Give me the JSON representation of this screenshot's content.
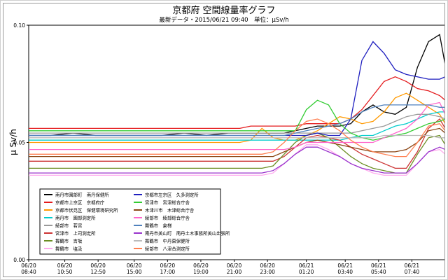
{
  "chart_data": {
    "type": "line",
    "title": "京都府 空間線量率グラフ",
    "subtitle": "最新データ・2015/06/21 09:40　単位：μSv/h",
    "ylabel": "μ Sv/h",
    "xlabel": "",
    "ylim": [
      0.0,
      0.1
    ],
    "y_ticks": [
      "0.00",
      "0.05",
      "0.10"
    ],
    "x_ticks": [
      {
        "date": "06/20",
        "time": "08:40"
      },
      {
        "date": "06/20",
        "time": "10:50"
      },
      {
        "date": "06/20",
        "time": "12:50"
      },
      {
        "date": "06/20",
        "time": "15:00"
      },
      {
        "date": "06/20",
        "time": "17:00"
      },
      {
        "date": "06/20",
        "time": "19:00"
      },
      {
        "date": "06/20",
        "time": "21:00"
      },
      {
        "date": "06/20",
        "time": "23:00"
      },
      {
        "date": "06/21",
        "time": "01:20"
      },
      {
        "date": "06/21",
        "time": "03:40"
      },
      {
        "date": "06/21",
        "time": "05:40"
      },
      {
        "date": "06/21",
        "time": "07:40"
      }
    ],
    "grid": false,
    "legend_position": "bottom-left",
    "x": [
      "06/20 08:40",
      "06/20 10:00",
      "06/20 11:20",
      "06/20 12:40",
      "06/20 14:00",
      "06/20 15:20",
      "06/20 16:40",
      "06/20 18:00",
      "06/20 19:20",
      "06/20 20:40",
      "06/20 21:20",
      "06/20 22:00",
      "06/20 22:40",
      "06/20 23:20",
      "06/21 00:00",
      "06/21 00:40",
      "06/21 01:20",
      "06/21 02:00",
      "06/21 02:40",
      "06/21 03:20",
      "06/21 04:00",
      "06/21 04:40",
      "06/21 05:20",
      "06/21 06:00",
      "06/21 06:40",
      "06/21 07:20",
      "06/21 08:00",
      "06/21 08:40",
      "06/21 09:20",
      "06/21 09:40"
    ],
    "series": [
      {
        "name": "南丹市園部町　南丹保健所",
        "color": "#000000",
        "values": [
          0.053,
          0.053,
          0.054,
          0.053,
          0.053,
          0.053,
          0.053,
          0.054,
          0.053,
          0.054,
          0.054,
          0.054,
          0.054,
          0.054,
          0.054,
          0.055,
          0.056,
          0.057,
          0.057,
          0.057,
          0.058,
          0.063,
          0.066,
          0.063,
          0.062,
          0.065,
          0.082,
          0.093,
          0.096,
          0.083
        ]
      },
      {
        "name": "京都市上京区　京都府庁",
        "color": "#e41a1c",
        "values": [
          0.056,
          0.056,
          0.056,
          0.056,
          0.056,
          0.056,
          0.056,
          0.056,
          0.056,
          0.056,
          0.056,
          0.057,
          0.057,
          0.057,
          0.057,
          0.057,
          0.058,
          0.058,
          0.058,
          0.058,
          0.06,
          0.064,
          0.07,
          0.076,
          0.078,
          0.076,
          0.073,
          0.072,
          0.07,
          0.068
        ]
      },
      {
        "name": "京都市伏見区　保健環境研究所",
        "color": "#ff9900",
        "values": [
          0.05,
          0.05,
          0.05,
          0.05,
          0.05,
          0.05,
          0.05,
          0.05,
          0.05,
          0.05,
          0.05,
          0.051,
          0.056,
          0.052,
          0.051,
          0.051,
          0.053,
          0.055,
          0.058,
          0.061,
          0.06,
          0.058,
          0.059,
          0.063,
          0.069,
          0.071,
          0.068,
          0.065,
          0.062,
          0.058
        ]
      },
      {
        "name": "南丹市　園部測定所",
        "color": "#00cccc",
        "values": [
          0.051,
          0.051,
          0.051,
          0.051,
          0.051,
          0.051,
          0.051,
          0.051,
          0.051,
          0.051,
          0.051,
          0.051,
          0.051,
          0.051,
          0.051,
          0.051,
          0.051,
          0.051,
          0.051,
          0.051,
          0.052,
          0.053,
          0.053,
          0.055,
          0.057,
          0.058,
          0.06,
          0.062,
          0.063,
          0.063
        ]
      },
      {
        "name": "綾部市　若宮",
        "color": "#999999",
        "values": [
          0.054,
          0.054,
          0.054,
          0.054,
          0.054,
          0.054,
          0.054,
          0.054,
          0.054,
          0.054,
          0.054,
          0.054,
          0.054,
          0.054,
          0.054,
          0.054,
          0.054,
          0.054,
          0.054,
          0.054,
          0.054,
          0.055,
          0.056,
          0.057,
          0.059,
          0.061,
          0.062,
          0.062,
          0.061,
          0.06
        ]
      },
      {
        "name": "宮津市　上司測定所",
        "color": "#cc3333",
        "values": [
          0.042,
          0.042,
          0.042,
          0.042,
          0.042,
          0.042,
          0.042,
          0.042,
          0.042,
          0.042,
          0.042,
          0.042,
          0.042,
          0.042,
          0.044,
          0.048,
          0.052,
          0.053,
          0.052,
          0.051,
          0.048,
          0.045,
          0.043,
          0.041,
          0.039,
          0.039,
          0.046,
          0.056,
          0.06,
          0.056
        ]
      },
      {
        "name": "舞鶴市　吉坂",
        "color": "#6b8e23",
        "values": [
          0.039,
          0.039,
          0.039,
          0.039,
          0.039,
          0.039,
          0.039,
          0.039,
          0.039,
          0.039,
          0.039,
          0.039,
          0.039,
          0.04,
          0.045,
          0.05,
          0.053,
          0.054,
          0.052,
          0.048,
          0.044,
          0.041,
          0.039,
          0.038,
          0.037,
          0.037,
          0.045,
          0.052,
          0.053,
          0.049
        ]
      },
      {
        "name": "舞鶴市　塩汲",
        "color": "#ffaaee",
        "values": [
          0.036,
          0.036,
          0.036,
          0.036,
          0.036,
          0.036,
          0.036,
          0.036,
          0.036,
          0.036,
          0.036,
          0.036,
          0.036,
          0.037,
          0.041,
          0.045,
          0.049,
          0.049,
          0.047,
          0.044,
          0.041,
          0.039,
          0.037,
          0.036,
          0.036,
          0.036,
          0.041,
          0.046,
          0.047,
          0.045
        ]
      },
      {
        "name": "京都市左京区　久多測定所",
        "color": "#1f1fbf",
        "values": [
          0.053,
          0.053,
          0.053,
          0.053,
          0.053,
          0.053,
          0.053,
          0.053,
          0.053,
          0.053,
          0.053,
          0.053,
          0.053,
          0.053,
          0.053,
          0.053,
          0.053,
          0.054,
          0.053,
          0.053,
          0.06,
          0.085,
          0.093,
          0.088,
          0.081,
          0.079,
          0.078,
          0.077,
          0.077,
          0.078
        ]
      },
      {
        "name": "宮津市　宮津総合庁舎",
        "color": "#33cc33",
        "values": [
          0.055,
          0.055,
          0.055,
          0.055,
          0.055,
          0.055,
          0.055,
          0.055,
          0.055,
          0.055,
          0.055,
          0.055,
          0.055,
          0.055,
          0.055,
          0.055,
          0.064,
          0.068,
          0.066,
          0.058,
          0.054,
          0.052,
          0.051,
          0.052,
          0.053,
          0.054,
          0.056,
          0.058,
          0.059,
          0.06
        ]
      },
      {
        "name": "木津川市　木津総合庁舎",
        "color": "#8b4513",
        "values": [
          0.044,
          0.044,
          0.044,
          0.044,
          0.044,
          0.044,
          0.044,
          0.044,
          0.044,
          0.044,
          0.044,
          0.044,
          0.044,
          0.044,
          0.046,
          0.048,
          0.05,
          0.051,
          0.05,
          0.049,
          0.048,
          0.047,
          0.046,
          0.046,
          0.046,
          0.047,
          0.05,
          0.055,
          0.056,
          0.054
        ]
      },
      {
        "name": "綾部市　綾部総合庁舎",
        "color": "#ff66cc",
        "values": [
          0.047,
          0.047,
          0.047,
          0.047,
          0.047,
          0.047,
          0.047,
          0.047,
          0.047,
          0.047,
          0.047,
          0.047,
          0.047,
          0.047,
          0.047,
          0.048,
          0.05,
          0.05,
          0.05,
          0.05,
          0.05,
          0.05,
          0.05,
          0.052,
          0.054,
          0.056,
          0.06,
          0.066,
          0.067,
          0.062
        ]
      },
      {
        "name": "舞鶴市　倉梯",
        "color": "#4f81bd",
        "values": [
          0.053,
          0.053,
          0.053,
          0.053,
          0.053,
          0.053,
          0.053,
          0.053,
          0.053,
          0.053,
          0.053,
          0.053,
          0.053,
          0.053,
          0.053,
          0.054,
          0.055,
          0.056,
          0.057,
          0.058,
          0.06,
          0.063,
          0.065,
          0.066,
          0.066,
          0.066,
          0.066,
          0.066,
          0.065,
          0.065
        ]
      },
      {
        "name": "南丹市美山町　南丹土木事務所美山出張所",
        "color": "#9933cc",
        "values": [
          0.037,
          0.037,
          0.037,
          0.037,
          0.037,
          0.037,
          0.037,
          0.037,
          0.037,
          0.037,
          0.037,
          0.037,
          0.037,
          0.038,
          0.041,
          0.045,
          0.048,
          0.048,
          0.046,
          0.044,
          0.041,
          0.039,
          0.038,
          0.037,
          0.037,
          0.037,
          0.041,
          0.046,
          0.048,
          0.047
        ]
      },
      {
        "name": "舞鶴市　中丹東保健所",
        "color": "#bbbbbb",
        "values": [
          0.052,
          0.052,
          0.052,
          0.052,
          0.052,
          0.052,
          0.052,
          0.052,
          0.052,
          0.052,
          0.052,
          0.052,
          0.052,
          0.052,
          0.052,
          0.052,
          0.052,
          0.052,
          0.052,
          0.052,
          0.052,
          0.052,
          0.052,
          0.053,
          0.053,
          0.053,
          0.053,
          0.053,
          0.052,
          0.052
        ]
      },
      {
        "name": "綾部市　八津合測定所",
        "color": "#ff7f50",
        "values": [
          0.045,
          0.045,
          0.045,
          0.045,
          0.045,
          0.045,
          0.045,
          0.045,
          0.045,
          0.045,
          0.045,
          0.045,
          0.045,
          0.046,
          0.05,
          0.055,
          0.059,
          0.06,
          0.058,
          0.055,
          0.051,
          0.048,
          0.046,
          0.045,
          0.044,
          0.044,
          0.05,
          0.057,
          0.058,
          0.055
        ]
      }
    ]
  }
}
